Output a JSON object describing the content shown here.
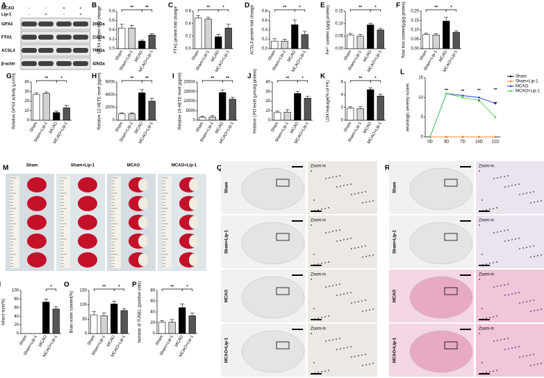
{
  "chart_data": [
    {
      "type": "bar",
      "panel": "B",
      "ylabel": "GPX4 protein fold change",
      "categories": [
        "Sham",
        "Sham+Lip-1",
        "MCAO",
        "MCAO+Lip-1"
      ],
      "values": [
        0.44,
        0.44,
        0.16,
        0.29
      ],
      "errors": [
        0.08,
        0.06,
        0.02,
        0.03
      ],
      "colors": [
        "#ffffff",
        "#d3d3d3",
        "#000000",
        "#555555"
      ],
      "ylim": [
        0,
        0.8
      ],
      "yticks": [
        {
          "value": 0,
          "label": "0.0"
        },
        0.2,
        0.4,
        0.6,
        0.8
      ],
      "annotations": [
        "**",
        "**"
      ]
    },
    {
      "type": "bar",
      "panel": "C",
      "ylabel": "FTH1 protein fold change",
      "categories": [
        "Sham",
        "Sham+Lip-1",
        "MCAO",
        "MCAO+Lip-1"
      ],
      "values": [
        0.49,
        0.47,
        0.19,
        0.33
      ],
      "errors": [
        0.04,
        0.03,
        0.04,
        0.06
      ],
      "colors": [
        "#ffffff",
        "#d3d3d3",
        "#000000",
        "#555555"
      ],
      "ylim": [
        0,
        0.6
      ],
      "yticks": [
        {
          "value": 0,
          "label": "0.0"
        },
        0.2,
        0.4,
        0.6
      ],
      "annotations": [
        "**",
        "*"
      ]
    },
    {
      "type": "bar",
      "panel": "D",
      "ylabel": "ACSL4 protein fold change",
      "categories": [
        "Sham",
        "Sham+Lip-1",
        "MCAO",
        "MCAO+Lip-1"
      ],
      "values": [
        0.16,
        0.16,
        0.51,
        0.3
      ],
      "errors": [
        0.05,
        0.04,
        0.1,
        0.07
      ],
      "colors": [
        "#ffffff",
        "#d3d3d3",
        "#000000",
        "#555555"
      ],
      "ylim": [
        0,
        0.8
      ],
      "yticks": [
        {
          "value": 0,
          "label": "0.0"
        },
        0.2,
        0.4,
        0.6,
        0.8
      ],
      "annotations": [
        "**",
        "*"
      ]
    },
    {
      "type": "bar",
      "panel": "E",
      "ylabel": "Fe²⁺ content (μg/g protein)",
      "categories": [
        "Sham",
        "Sham+Lip-1",
        "MCAO",
        "MCAO+Lip-1"
      ],
      "values": [
        0.055,
        0.05,
        0.095,
        0.075
      ],
      "errors": [
        0.006,
        0.007,
        0.006,
        0.006
      ],
      "colors": [
        "#ffffff",
        "#d3d3d3",
        "#000000",
        "#555555"
      ],
      "ylim": [
        0,
        0.15
      ],
      "yticks": [
        {
          "value": 0,
          "label": "0.00"
        },
        0.05,
        {
          "value": 0.1,
          "label": "0.10"
        },
        0.15
      ],
      "annotations": [
        "**",
        "*"
      ]
    },
    {
      "type": "bar",
      "panel": "F",
      "ylabel": "Total Iron content(μg/g protein)",
      "categories": [
        "Sham",
        "Sham+Lip-1",
        "MCAO",
        "MCAO+Lip-1"
      ],
      "values": [
        0.075,
        0.073,
        0.147,
        0.087
      ],
      "errors": [
        0.007,
        0.006,
        0.02,
        0.008
      ],
      "colors": [
        "#ffffff",
        "#d3d3d3",
        "#000000",
        "#555555"
      ],
      "ylim": [
        0,
        0.2
      ],
      "yticks": [
        {
          "value": 0,
          "label": "0.00"
        },
        0.05,
        {
          "value": 0.1,
          "label": "0.10"
        },
        0.15,
        {
          "value": 0.2,
          "label": "0.20"
        }
      ],
      "annotations": [
        "**",
        "*"
      ]
    },
    {
      "type": "bar",
      "panel": "G",
      "ylabel": "Relative GPX4 activity (μU/ml)",
      "categories": [
        "Sham",
        "Sham+Lip-1",
        "MCAO",
        "MCAO+Lip-1"
      ],
      "values": [
        27,
        28,
        8,
        13
      ],
      "errors": [
        1.5,
        1.5,
        1.5,
        2.5
      ],
      "colors": [
        "#ffffff",
        "#d3d3d3",
        "#000000",
        "#555555"
      ],
      "ylim": [
        0,
        40
      ],
      "yticks": [
        0,
        10,
        20,
        30,
        40
      ],
      "annotations": [
        "**",
        "*"
      ]
    },
    {
      "type": "bar",
      "panel": "H",
      "ylabel": "Relative 12-HETE level (pg/ml)",
      "categories": [
        "Sham",
        "Sham+Lip-1",
        "MCAO",
        "MCAO+Lip-1"
      ],
      "values": [
        1000,
        1000,
        4300,
        3000
      ],
      "errors": [
        150,
        150,
        500,
        450
      ],
      "colors": [
        "#ffffff",
        "#d3d3d3",
        "#000000",
        "#555555"
      ],
      "ylim": [
        0,
        6000
      ],
      "yticks": [
        0,
        2000,
        4000,
        6000
      ],
      "annotations": [
        "**",
        "**"
      ]
    },
    {
      "type": "bar",
      "panel": "I",
      "ylabel": "Relative 15-HETE level (pg/ml)",
      "categories": [
        "Sham",
        "Sham+Lip-1",
        "MCAO",
        "MCAO+Lip-1"
      ],
      "values": [
        1500,
        1700,
        14500,
        11000
      ],
      "errors": [
        600,
        800,
        1300,
        1000
      ],
      "colors": [
        "#ffffff",
        "#d3d3d3",
        "#000000",
        "#555555"
      ],
      "ylim": [
        0,
        20000
      ],
      "yticks": [
        0,
        5000,
        10000,
        15000,
        20000
      ],
      "annotations": [
        "**",
        "**"
      ]
    },
    {
      "type": "bar",
      "panel": "J",
      "ylabel": "Relative LPO level (μmol/g protein)",
      "categories": [
        "Sham",
        "Sham+Lip-1",
        "MCAO",
        "MCAO+Lip-1"
      ],
      "values": [
        8,
        8.5,
        28,
        23
      ],
      "errors": [
        1.5,
        2.5,
        2,
        2
      ],
      "colors": [
        "#ffffff",
        "#d3d3d3",
        "#000000",
        "#555555"
      ],
      "ylim": [
        0,
        40
      ],
      "yticks": [
        0,
        10,
        20,
        30,
        40
      ],
      "annotations": [
        "**",
        "*"
      ]
    },
    {
      "type": "bar",
      "panel": "K",
      "ylabel": "LDH leakage(% of FK)",
      "categories": [
        "Sham",
        "Sham+Lip-1",
        "MCAO",
        "MCAO+Lip-1"
      ],
      "values": [
        1.9,
        1.8,
        4.8,
        3.8
      ],
      "errors": [
        0.2,
        0.3,
        0.3,
        0.3
      ],
      "colors": [
        "#ffffff",
        "#d3d3d3",
        "#000000",
        "#555555"
      ],
      "ylim": [
        0,
        6
      ],
      "yticks": [
        0,
        2,
        4,
        6
      ],
      "annotations": [
        "**",
        "*"
      ]
    },
    {
      "type": "line",
      "panel": "L",
      "ylabel": "neurologic severity scores",
      "categories": [
        "0D",
        "3D",
        "7D",
        "14D",
        "21D"
      ],
      "series": [
        {
          "name": "Sham",
          "color": "#000000",
          "values": [
            0,
            0,
            0,
            0,
            0
          ]
        },
        {
          "name": "Sham+Lip-1",
          "color": "#f08a24",
          "values": [
            0,
            0,
            0,
            0,
            0
          ]
        },
        {
          "name": "MCAO",
          "color": "#2a3fd8",
          "values": [
            0,
            11,
            10.5,
            10,
            8.5
          ]
        },
        {
          "name": "MCAO+Lip-1",
          "color": "#55d455",
          "values": [
            0,
            11,
            10,
            9.3,
            5
          ]
        }
      ],
      "ylim": [
        0,
        15
      ],
      "yticks": [
        0,
        5,
        10,
        15
      ],
      "annotations": [
        "**",
        "**",
        "**",
        "*",
        "**",
        "**"
      ]
    },
    {
      "type": "bar",
      "panel": "N",
      "ylabel": "Infarct size(%)",
      "categories": [
        "Sham",
        "Sham+Lip-1",
        "MCAO",
        "MCAO+Lip-1"
      ],
      "values": [
        0,
        0,
        73,
        57
      ],
      "errors": [
        0,
        0,
        7,
        5
      ],
      "colors": [
        "#ffffff",
        "#d3d3d3",
        "#000000",
        "#555555"
      ],
      "ylim": [
        0,
        100
      ],
      "yticks": [
        0,
        20,
        40,
        60,
        80,
        100
      ],
      "annotations": [
        "*"
      ]
    },
    {
      "type": "bar",
      "panel": "O",
      "ylabel": "Brain water content(%)",
      "categories": [
        "Sham",
        "Sham+Lip-1",
        "MCAO",
        "MCAO+Lip-1"
      ],
      "values": [
        65,
        62,
        103,
        80
      ],
      "errors": [
        12,
        10,
        10,
        7
      ],
      "colors": [
        "#ffffff",
        "#d3d3d3",
        "#000000",
        "#555555"
      ],
      "ylim": [
        0,
        150
      ],
      "yticks": [
        0,
        50,
        100,
        150
      ],
      "annotations": [
        "**",
        "*"
      ]
    },
    {
      "type": "bar",
      "panel": "P",
      "ylabel": "Number of TUNEL (positive cells)",
      "categories": [
        "Sham",
        "Sham+Lip-1",
        "MCAO",
        "MCAO+Lip-1"
      ],
      "values": [
        21,
        21,
        48,
        33
      ],
      "errors": [
        3,
        5,
        7,
        5
      ],
      "colors": [
        "#ffffff",
        "#d3d3d3",
        "#000000",
        "#555555"
      ],
      "ylim": [
        0,
        80
      ],
      "yticks": [
        0,
        20,
        40,
        60,
        80
      ],
      "annotations": [
        "**",
        "*"
      ]
    }
  ],
  "blot": {
    "panel": "A",
    "conditions": [
      {
        "label": "MCAO",
        "signs": [
          "-",
          "-",
          "+",
          "+"
        ]
      },
      {
        "label": "Lip-1",
        "signs": [
          "-",
          "+",
          "-",
          "+"
        ]
      }
    ],
    "proteins": [
      {
        "name": "GPX4",
        "size": "20kDa"
      },
      {
        "name": "FTH1",
        "size": "21kDa"
      },
      {
        "name": "ACSL4",
        "size": "79kDa"
      },
      {
        "name": "β-actin",
        "size": "42kDa"
      }
    ]
  },
  "ttc": {
    "panel": "M",
    "groups": [
      "Sham",
      "Sham+Lip-1",
      "MCAO",
      "MCAO+Lip-1"
    ]
  },
  "histology": [
    {
      "panel": "Q",
      "rows": [
        "Sham",
        "Sham+Lip-1",
        "MCAO",
        "MCAO+Lip-1"
      ],
      "zoom": "Zoom-in"
    },
    {
      "panel": "R",
      "rows": [
        "Sham",
        "Sham+Lip-1",
        "MCAO",
        "MCAO+Lip-1"
      ],
      "zoom": "Zoom-in"
    }
  ]
}
